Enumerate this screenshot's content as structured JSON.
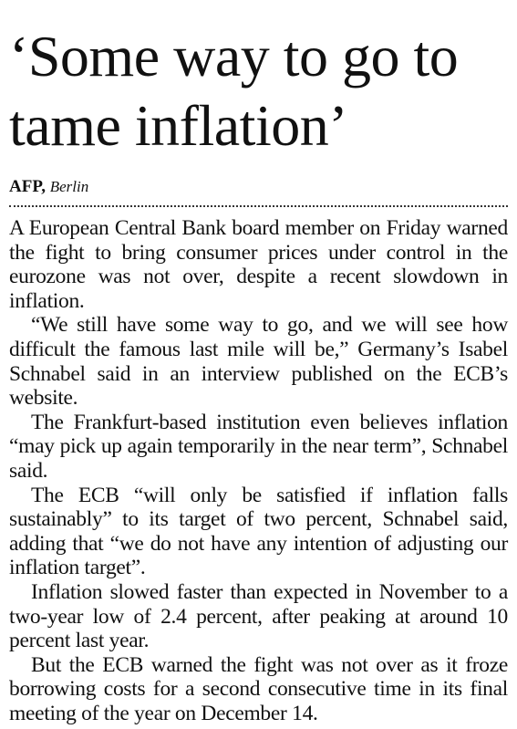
{
  "headline": "‘Some way to go to tame inflation’",
  "byline": {
    "agency": "AFP,",
    "place": "Berlin"
  },
  "paragraphs": [
    "A European Central Bank board member on Friday warned the fight to bring consumer prices under control in the eurozone was not over, despite a recent slowdown in inflation.",
    "“We still have some way to go, and we will see how difficult the famous last mile will be,” Germany’s Isabel Schnabel said in an interview published on the ECB’s website.",
    "The Frankfurt-based institution even believes inflation “may pick up again temporarily in the near term”, Schnabel said.",
    "The ECB “will only be satisfied if inflation falls sustainably” to its target of two percent, Schnabel said, adding that “we do not have any intention of adjusting our inflation target”.",
    "Inflation slowed faster than expected in November to a two-year low of 2.4 percent, after peaking at around 10 percent last year.",
    "But the ECB warned the fight was not over as it froze borrowing costs for a second consecutive time in its final meeting of the year on December 14."
  ]
}
